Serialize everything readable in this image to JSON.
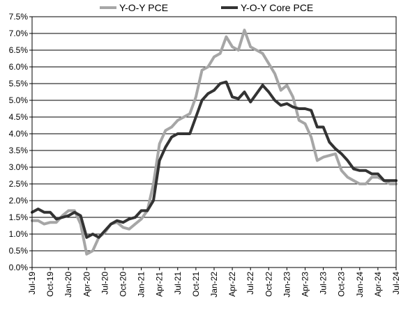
{
  "chart_data": {
    "type": "line",
    "title": "",
    "xlabel": "",
    "ylabel": "",
    "ylim": [
      0,
      7.5
    ],
    "y_ticks": [
      "0.0%",
      "0.5%",
      "1.0%",
      "1.5%",
      "2.0%",
      "2.5%",
      "3.0%",
      "3.5%",
      "4.0%",
      "4.5%",
      "5.0%",
      "5.5%",
      "6.0%",
      "6.5%",
      "7.0%",
      "7.5%"
    ],
    "x_tick_labels": [
      "Jul-19",
      "Oct-19",
      "Jan-20",
      "Apr-20",
      "Jul-20",
      "Oct-20",
      "Jan-21",
      "Apr-21",
      "Jul-21",
      "Oct-21",
      "Jan-22",
      "Apr-22",
      "Jul-22",
      "Oct-22",
      "Jan-23",
      "Apr-23",
      "Jul-23",
      "Oct-23",
      "Jan-24",
      "Apr-24",
      "Jul-24"
    ],
    "x": [
      "Jul-19",
      "Aug-19",
      "Sep-19",
      "Oct-19",
      "Nov-19",
      "Dec-19",
      "Jan-20",
      "Feb-20",
      "Mar-20",
      "Apr-20",
      "May-20",
      "Jun-20",
      "Jul-20",
      "Aug-20",
      "Sep-20",
      "Oct-20",
      "Nov-20",
      "Dec-20",
      "Jan-21",
      "Feb-21",
      "Mar-21",
      "Apr-21",
      "May-21",
      "Jun-21",
      "Jul-21",
      "Aug-21",
      "Sep-21",
      "Oct-21",
      "Nov-21",
      "Dec-21",
      "Jan-22",
      "Feb-22",
      "Mar-22",
      "Apr-22",
      "May-22",
      "Jun-22",
      "Jul-22",
      "Aug-22",
      "Sep-22",
      "Oct-22",
      "Nov-22",
      "Dec-22",
      "Jan-23",
      "Feb-23",
      "Mar-23",
      "Apr-23",
      "May-23",
      "Jun-23",
      "Jul-23",
      "Aug-23",
      "Sep-23",
      "Oct-23",
      "Nov-23",
      "Dec-23",
      "Jan-24",
      "Feb-24",
      "Mar-24",
      "Apr-24",
      "May-24",
      "Jun-24",
      "Jul-24"
    ],
    "grid": true,
    "legend_position": "top-center",
    "series": [
      {
        "name": "Y-O-Y PCE",
        "color": "#a6a6a6",
        "values": [
          1.4,
          1.4,
          1.3,
          1.35,
          1.35,
          1.55,
          1.7,
          1.7,
          1.3,
          0.4,
          0.5,
          0.9,
          1.05,
          1.3,
          1.35,
          1.2,
          1.15,
          1.3,
          1.45,
          1.7,
          2.5,
          3.7,
          4.1,
          4.2,
          4.4,
          4.5,
          4.6,
          5.1,
          5.9,
          6.0,
          6.3,
          6.4,
          6.9,
          6.6,
          6.5,
          7.1,
          6.6,
          6.5,
          6.4,
          6.1,
          5.8,
          5.3,
          5.45,
          5.1,
          4.4,
          4.3,
          3.9,
          3.2,
          3.3,
          3.35,
          3.4,
          2.9,
          2.7,
          2.6,
          2.5,
          2.5,
          2.7,
          2.7,
          2.6,
          2.5,
          2.5
        ]
      },
      {
        "name": "Y-O-Y Core PCE",
        "color": "#333333",
        "values": [
          1.65,
          1.75,
          1.65,
          1.65,
          1.45,
          1.5,
          1.55,
          1.65,
          1.55,
          0.9,
          1.0,
          0.9,
          1.1,
          1.3,
          1.4,
          1.35,
          1.45,
          1.5,
          1.7,
          1.7,
          2.0,
          3.2,
          3.6,
          3.9,
          4.0,
          4.0,
          4.0,
          4.5,
          5.0,
          5.2,
          5.3,
          5.5,
          5.55,
          5.1,
          5.05,
          5.25,
          4.95,
          5.2,
          5.45,
          5.25,
          5.0,
          4.85,
          4.9,
          4.8,
          4.75,
          4.75,
          4.7,
          4.2,
          4.2,
          3.75,
          3.55,
          3.4,
          3.2,
          2.95,
          2.9,
          2.9,
          2.8,
          2.8,
          2.6,
          2.6,
          2.6
        ]
      }
    ]
  }
}
